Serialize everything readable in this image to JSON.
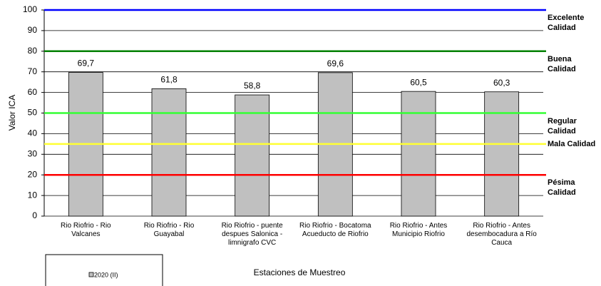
{
  "chart_data": {
    "type": "bar",
    "ylabel": "Valor  ICA",
    "xlabel": "Estaciones de Muestreo",
    "categories": [
      "Rio Riofrio - Rio\nValcanes",
      "Rio Riofrio - Rio\nGuayabal",
      "Rio Riofrio - puente\ndespues Salonica -\nlimnigrafo CVC",
      "Rio Riofrio - Bocatoma\nAcueducto de Riofrio",
      "Rio Riofrio - Antes\nMunicipio Riofrio",
      "Rio Riofrio - Antes\ndesembocadura a Río\nCauca"
    ],
    "series": [
      {
        "name": "2020 (II)",
        "color": "#c0c0c0",
        "values": [
          69.7,
          61.8,
          58.8,
          69.6,
          60.5,
          60.3
        ],
        "value_labels": [
          "69,7",
          "61,8",
          "58,8",
          "69,6",
          "60,5",
          "60,3"
        ]
      }
    ],
    "ylim": [
      0,
      100
    ],
    "yticks": [
      0,
      10,
      20,
      30,
      40,
      50,
      60,
      70,
      80,
      90,
      100
    ],
    "grid": true,
    "reference_lines": [
      {
        "value": 100,
        "label": "Excelente\nCalidad",
        "color": "#0000ff"
      },
      {
        "value": 80,
        "label": "Buena\nCalidad",
        "color": "#008000"
      },
      {
        "value": 50,
        "label": "Regular\nCalidad",
        "color": "#33ff33"
      },
      {
        "value": 35,
        "label": "Mala Calidad",
        "color": "#ffff33"
      },
      {
        "value": 20,
        "label": "Pésima\nCalidad",
        "color": "#ff0000"
      }
    ]
  }
}
